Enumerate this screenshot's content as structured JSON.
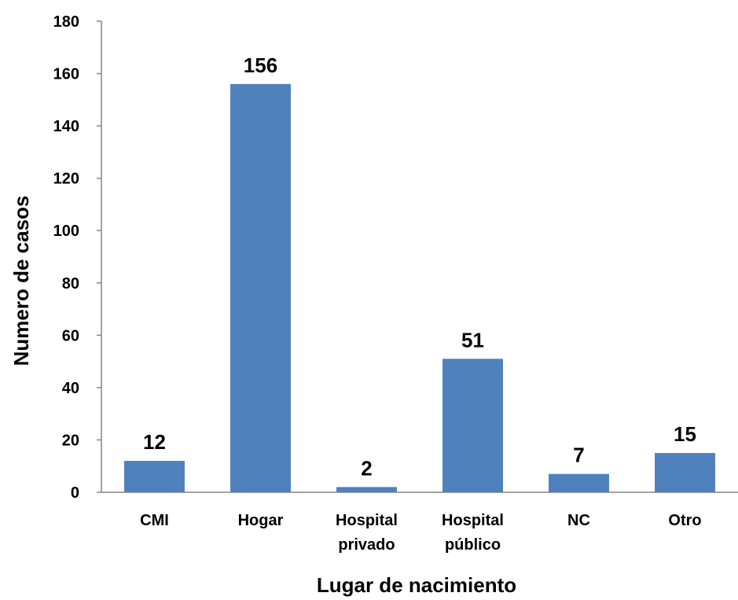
{
  "chart_data": {
    "type": "bar",
    "title": "",
    "xlabel": "Lugar de nacimiento",
    "ylabel": "Numero  de casos",
    "categories": [
      [
        "CMI"
      ],
      [
        "Hogar"
      ],
      [
        "Hospital",
        "privado"
      ],
      [
        "Hospital",
        "público"
      ],
      [
        "NC"
      ],
      [
        "Otro"
      ]
    ],
    "values": [
      12,
      156,
      2,
      51,
      7,
      15
    ],
    "data_labels": [
      "12",
      "156",
      "2",
      "51",
      "7",
      "15"
    ],
    "ylim": [
      0,
      180
    ],
    "yticks": [
      "0",
      "20",
      "40",
      "60",
      "80",
      "100",
      "120",
      "140",
      "160",
      "180"
    ],
    "bar_color": "#4f81bd",
    "grid": false,
    "legend": "none"
  }
}
